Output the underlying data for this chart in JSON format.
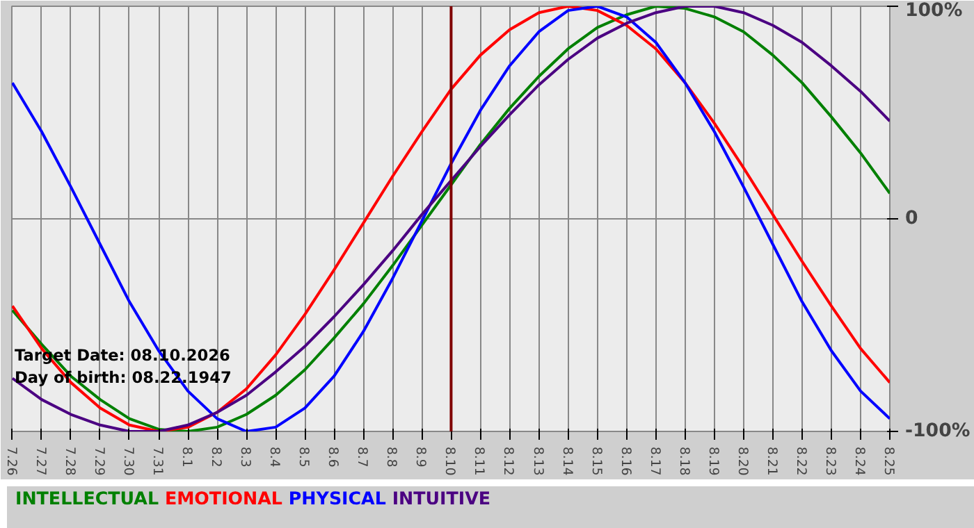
{
  "chart_data": {
    "type": "line",
    "categories": [
      "7.26",
      "7.27",
      "7.28",
      "7.29",
      "7.30",
      "7.31",
      "8.1",
      "8.2",
      "8.3",
      "8.4",
      "8.5",
      "8.6",
      "8.7",
      "8.8",
      "8.9",
      "8.10",
      "8.11",
      "8.12",
      "8.13",
      "8.14",
      "8.15",
      "8.16",
      "8.17",
      "8.18",
      "8.19",
      "8.20",
      "8.21",
      "8.22",
      "8.23",
      "8.24",
      "8.25"
    ],
    "series": [
      {
        "name": "INTELLECTUAL",
        "color": "#008000",
        "values": [
          -43,
          -59,
          -74,
          -85,
          -94,
          -99,
          -100,
          -98,
          -92,
          -83,
          -71,
          -56,
          -40,
          -22,
          -3,
          16,
          35,
          52,
          67,
          80,
          90,
          96,
          100,
          99,
          95,
          88,
          77,
          64,
          48,
          31,
          12
        ]
      },
      {
        "name": "EMOTIONAL",
        "color": "#ff0000",
        "values": [
          -41,
          -61,
          -77,
          -89,
          -97,
          -100,
          -98,
          -91,
          -80,
          -64,
          -45,
          -24,
          -2,
          20,
          41,
          61,
          77,
          89,
          97,
          100,
          98,
          91,
          80,
          64,
          45,
          24,
          2,
          -20,
          -41,
          -61,
          -77
        ]
      },
      {
        "name": "PHYSICAL",
        "color": "#0000ff",
        "values": [
          64,
          41,
          15,
          -12,
          -39,
          -62,
          -81,
          -94,
          -100,
          -98,
          -89,
          -74,
          -53,
          -28,
          -1,
          26,
          51,
          72,
          88,
          98,
          100,
          95,
          83,
          64,
          41,
          15,
          -12,
          -39,
          -62,
          -81,
          -94
        ]
      },
      {
        "name": "INTUITIVE",
        "color": "#4b0082",
        "values": [
          -75,
          -85,
          -92,
          -97,
          -100,
          -100,
          -97,
          -91,
          -83,
          -72,
          -60,
          -46,
          -31,
          -15,
          2,
          18,
          34,
          49,
          63,
          75,
          85,
          92,
          97,
          100,
          100,
          97,
          91,
          83,
          72,
          60,
          46
        ]
      }
    ],
    "ylim": [
      -100,
      100
    ],
    "yticks": [
      {
        "value": 100,
        "label": "100%"
      },
      0,
      {
        "value": -100,
        "label": "-100%"
      }
    ],
    "grid": true,
    "legend": "bottom",
    "line_style": "solid",
    "ref_lines": [
      {
        "axis": "x",
        "value": "8.10",
        "color": "#800000"
      }
    ],
    "annotations": [
      "Target Date: 08.10.2026",
      "Day of birth: 08.22.1947"
    ]
  }
}
